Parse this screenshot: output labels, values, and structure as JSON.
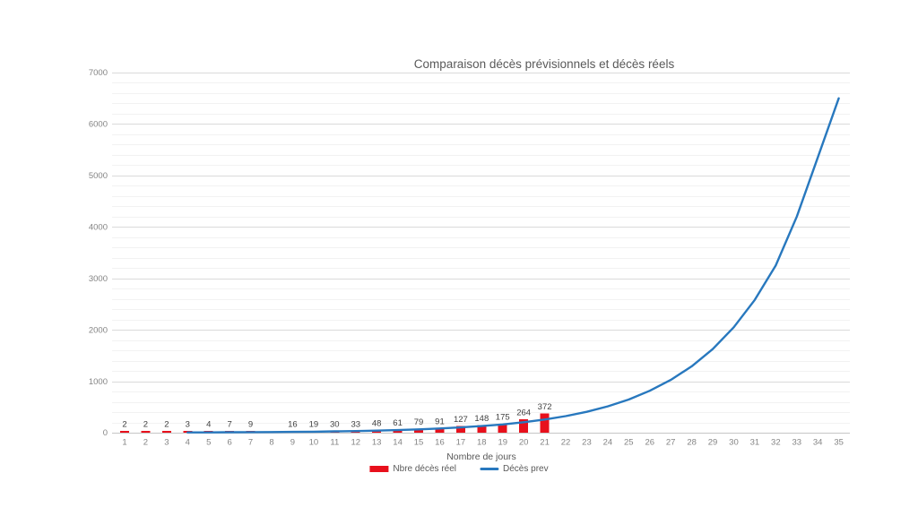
{
  "title": "Comparaison décès prévisionnels et décès réels",
  "x_axis": {
    "title": "Nombre de jours",
    "ticks": [
      1,
      2,
      3,
      4,
      5,
      6,
      7,
      8,
      9,
      10,
      11,
      12,
      13,
      14,
      15,
      16,
      17,
      18,
      19,
      20,
      21,
      22,
      23,
      24,
      25,
      26,
      27,
      28,
      29,
      30,
      31,
      32,
      33,
      34,
      35
    ]
  },
  "y_axis": {
    "ticks": [
      0,
      1000,
      2000,
      3000,
      4000,
      5000,
      6000,
      7000
    ],
    "minor_step": 200,
    "range": [
      0,
      7000
    ]
  },
  "colors": {
    "bar": "#e8101c",
    "line": "#2878be",
    "title_text": "#595959",
    "tick_text": "#848484",
    "data_label_text": "#404040",
    "grid_major": "#dadada",
    "grid_minor": "#f2f2f2",
    "axis_line": "#c6c6c6",
    "background": "#ffffff"
  },
  "chart_data": {
    "type": "combo",
    "title": "Comparaison décès prévisionnels et décès réels",
    "xlabel": "Nombre de jours",
    "ylabel": "",
    "ylim": [
      0,
      7000
    ],
    "grid": "horizontal major (1000) + minor (200)",
    "legend_position": "bottom",
    "x": [
      1,
      2,
      3,
      4,
      5,
      6,
      7,
      8,
      9,
      10,
      11,
      12,
      13,
      14,
      15,
      16,
      17,
      18,
      19,
      20,
      21,
      22,
      23,
      24,
      25,
      26,
      27,
      28,
      29,
      30,
      31,
      32,
      33,
      34,
      35
    ],
    "series": [
      {
        "name": "Nbre décès réel",
        "type": "bar",
        "color": "#e8101c",
        "data_labels": true,
        "values": [
          2,
          2,
          2,
          3,
          4,
          7,
          9,
          null,
          16,
          19,
          30,
          33,
          48,
          61,
          79,
          91,
          127,
          148,
          175,
          264,
          372,
          null,
          null,
          null,
          null,
          null,
          null,
          null,
          null,
          null,
          null,
          null,
          null,
          null,
          null
        ]
      },
      {
        "name": "Décès prev",
        "type": "line",
        "color": "#2878be",
        "data_labels": false,
        "values_estimated": true,
        "values": [
          null,
          null,
          null,
          5,
          6,
          8,
          10,
          13,
          16,
          20,
          26,
          32,
          40,
          51,
          64,
          81,
          102,
          128,
          161,
          203,
          256,
          322,
          406,
          512,
          645,
          815,
          1025,
          1290,
          1625,
          2050,
          2580,
          3250,
          4200,
          5350,
          6500
        ]
      }
    ]
  }
}
